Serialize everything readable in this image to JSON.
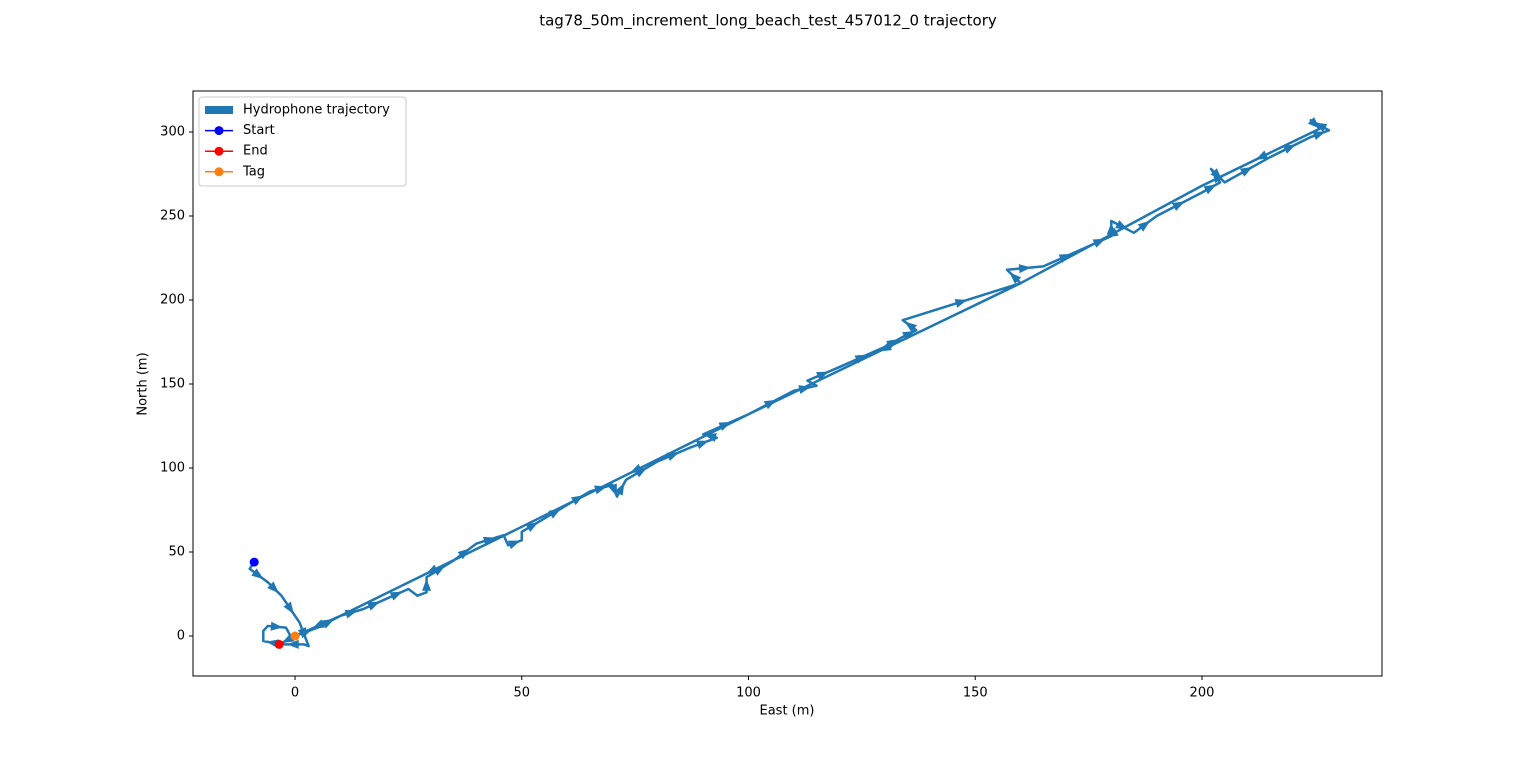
{
  "chart_data": {
    "type": "quiver",
    "title": "tag78_50m_increment_long_beach_test_457012_0 trajectory",
    "xlabel": "East (m)",
    "ylabel": "North (m)",
    "xlim": [
      -22.5,
      239.7
    ],
    "ylim": [
      -23.8,
      324.4
    ],
    "xticks": [
      0,
      50,
      100,
      150,
      200
    ],
    "yticks": [
      0,
      50,
      100,
      150,
      200,
      250,
      300
    ],
    "legend": "upper left",
    "series": [
      {
        "name": "Hydrophone trajectory",
        "color": "#1f77b4",
        "x": [
          -9,
          -10,
          -6,
          -3,
          1,
          3,
          2,
          -3,
          -7,
          -7,
          -6,
          -2,
          -1,
          0,
          5,
          10,
          15,
          20,
          25,
          27,
          29,
          29,
          35,
          40,
          46,
          47,
          50,
          50,
          55,
          60,
          65,
          70,
          71,
          73,
          80,
          87,
          93,
          90,
          100,
          110,
          115,
          113,
          120,
          130,
          134,
          137,
          134,
          160,
          157,
          165,
          175,
          180,
          180,
          185,
          190,
          200,
          204,
          202,
          205,
          215,
          224,
          228,
          224,
          226,
          200,
          160,
          100,
          50,
          10,
          0,
          -3.5
        ],
        "y": [
          44,
          40,
          32,
          24,
          8,
          -6,
          -5,
          -5,
          -3,
          3,
          6,
          5,
          0,
          0,
          5,
          12,
          16,
          22,
          28,
          24,
          26,
          35,
          45,
          55,
          60,
          54,
          57,
          62,
          70,
          78,
          86,
          90,
          83,
          93,
          104,
          112,
          118,
          120,
          132,
          146,
          149,
          152,
          160,
          172,
          178,
          182,
          188,
          210,
          218,
          220,
          232,
          238,
          247,
          240,
          250,
          264,
          270,
          278,
          270,
          285,
          297,
          301,
          307,
          302,
          268,
          210,
          132,
          65,
          12,
          0,
          -5
        ]
      },
      {
        "name": "Start",
        "color": "#0000ff",
        "x": [
          -9
        ],
        "y": [
          44
        ]
      },
      {
        "name": "End",
        "color": "#ff0000",
        "x": [
          -3.5
        ],
        "y": [
          -5
        ]
      },
      {
        "name": "Tag",
        "color": "#ff7f0e",
        "x": [
          0
        ],
        "y": [
          0
        ]
      }
    ]
  }
}
